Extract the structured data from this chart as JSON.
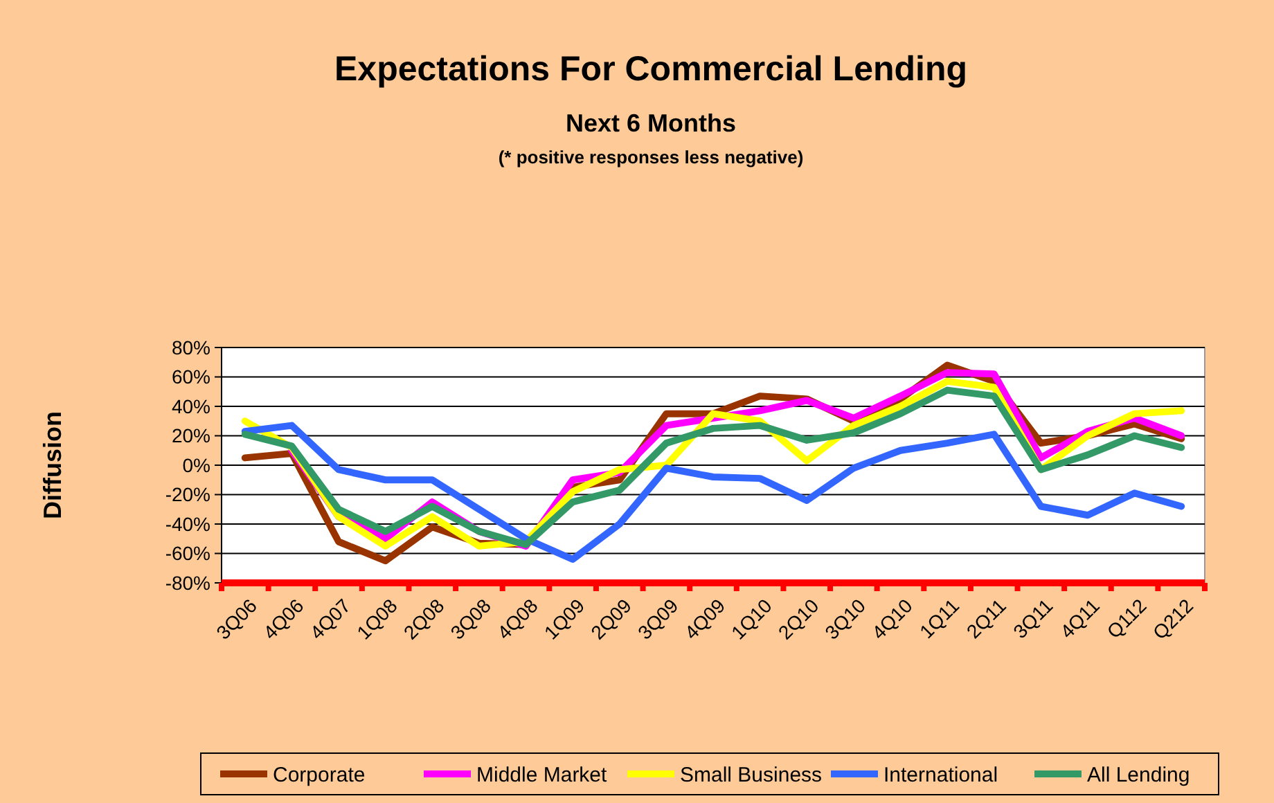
{
  "chart_data": {
    "type": "line",
    "title": "Expectations For Commercial Lending",
    "subtitle": "Next 6 Months",
    "annotations": [
      "(* positive responses less negative)"
    ],
    "ylabel": "Diffusion",
    "categories": [
      "3Q06",
      "4Q06",
      "4Q07",
      "1Q08",
      "2Q08",
      "3Q08",
      "4Q08",
      "1Q09",
      "2Q09",
      "3Q09",
      "4Q09",
      "1Q10",
      "2Q10",
      "3Q10",
      "4Q10",
      "1Q11",
      "2Q11",
      "3Q11",
      "4Q11",
      "Q112",
      "Q212"
    ],
    "series": [
      {
        "name": "Corporate",
        "color": "#993300",
        "values": [
          5,
          8,
          -52,
          -65,
          -42,
          -53,
          -54,
          -15,
          -10,
          35,
          35,
          47,
          45,
          30,
          45,
          68,
          57,
          15,
          20,
          28,
          18
        ]
      },
      {
        "name": "Middle Market",
        "color": "#ff00ff",
        "values": [
          null,
          10,
          -35,
          -50,
          -25,
          -45,
          -55,
          -10,
          -5,
          27,
          32,
          37,
          44,
          32,
          47,
          63,
          62,
          5,
          23,
          32,
          20
        ]
      },
      {
        "name": "Small Business",
        "color": "#ffff00",
        "values": [
          30,
          12,
          -35,
          -55,
          -35,
          -55,
          -52,
          -18,
          -3,
          0,
          35,
          30,
          3,
          27,
          40,
          57,
          53,
          -3,
          20,
          35,
          37
        ]
      },
      {
        "name": "International",
        "color": "#3366ff",
        "values": [
          23,
          27,
          -3,
          -10,
          -10,
          -30,
          -50,
          -64,
          -40,
          -2,
          -8,
          -9,
          -24,
          -2,
          10,
          15,
          21,
          -28,
          -34,
          -19,
          -28
        ]
      },
      {
        "name": "All Lending",
        "color": "#339966",
        "values": [
          21,
          13,
          -30,
          -45,
          -28,
          -45,
          -54,
          -25,
          -17,
          15,
          25,
          27,
          17,
          22,
          35,
          51,
          47,
          -3,
          7,
          20,
          12
        ]
      }
    ],
    "ylim": [
      -80,
      80
    ],
    "yticks": [
      {
        "value": -80,
        "label": "-80%"
      },
      {
        "value": -60,
        "label": "-60%"
      },
      {
        "value": -40,
        "label": "-40%"
      },
      {
        "value": -20,
        "label": "-20%"
      },
      {
        "value": 0,
        "label": "0%"
      },
      {
        "value": 20,
        "label": "20%"
      },
      {
        "value": 40,
        "label": "40%"
      },
      {
        "value": 60,
        "label": "60%"
      },
      {
        "value": 80,
        "label": "80%"
      }
    ],
    "grid": "y",
    "legend": "bottom",
    "marker": "none",
    "line_style": "solid"
  }
}
